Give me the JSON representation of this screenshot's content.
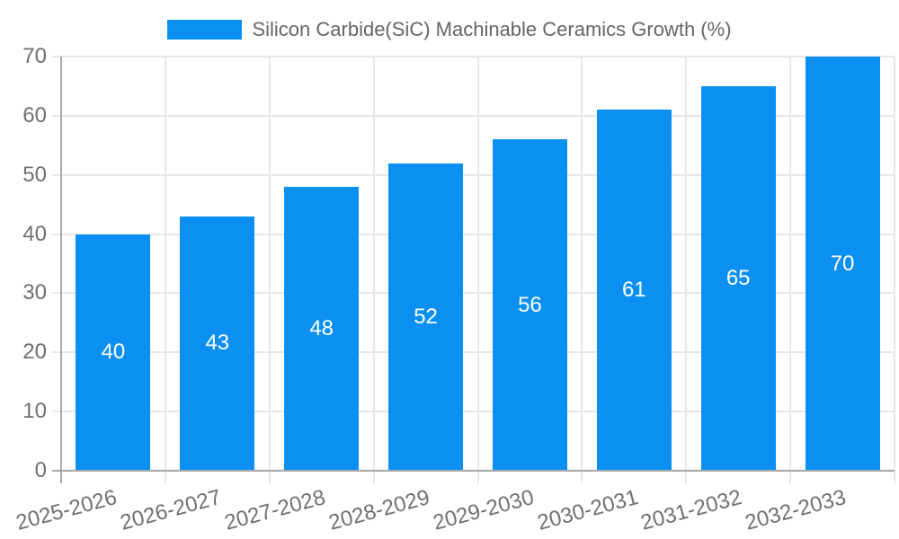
{
  "chart_data": {
    "type": "bar",
    "title": "Silicon Carbide(SiC) Machinable Ceramics Growth (%)",
    "categories": [
      "2025-2026",
      "2026-2027",
      "2027-2028",
      "2028-2029",
      "2029-2030",
      "2030-2031",
      "2031-2032",
      "2032-2033"
    ],
    "values": [
      40,
      43,
      48,
      52,
      56,
      61,
      65,
      70
    ],
    "xlabel": "",
    "ylabel": "",
    "ylim": [
      0,
      70
    ],
    "yticks": [
      0,
      10,
      20,
      30,
      40,
      50,
      60,
      70
    ],
    "grid": true,
    "legend_position": "top",
    "bar_color": "#0b90f2",
    "value_label_color": "#ffffff",
    "grid_color": "#e7e7e7",
    "axis_line_color": "#a8a8a8",
    "axis_text_color": "#707070",
    "title_color": "#666666"
  }
}
